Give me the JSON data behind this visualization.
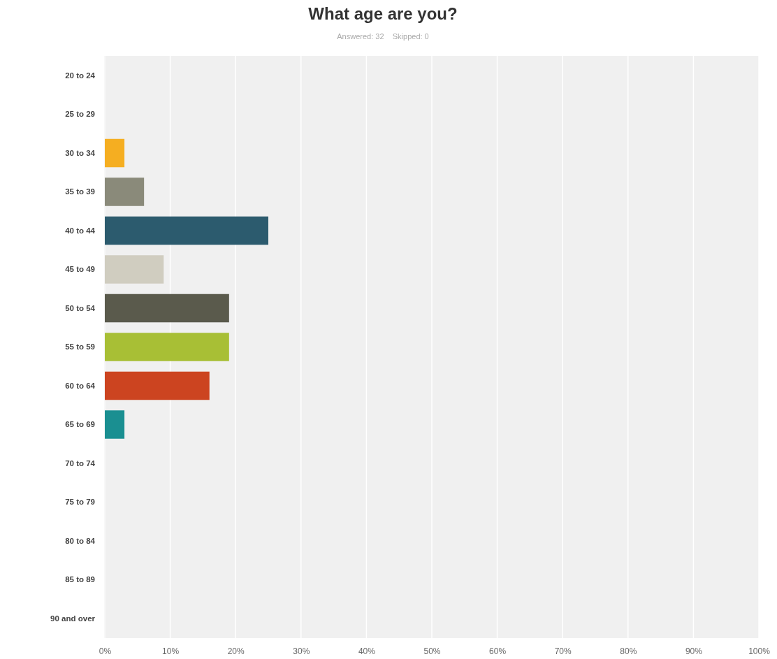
{
  "chart_data": {
    "type": "bar",
    "orientation": "horizontal",
    "title": "What age are you?",
    "subtitle": "Answered: 32    Skipped: 0",
    "categories": [
      "20 to 24",
      "25 to 29",
      "30 to 34",
      "35 to 39",
      "40 to 44",
      "45 to 49",
      "50 to 54",
      "55 to 59",
      "60 to 64",
      "65 to 69",
      "70 to 74",
      "75 to 79",
      "80 to 84",
      "85 to 89",
      "90 and over"
    ],
    "values": [
      0,
      0,
      3,
      6,
      25,
      9,
      19,
      19,
      16,
      3,
      0,
      0,
      0,
      0,
      0
    ],
    "colors": [
      null,
      null,
      "#f5ae21",
      "#8a8a7a",
      "#2c5b6e",
      "#d0cdc0",
      "#5a5a4c",
      "#a8bf35",
      "#cc4420",
      "#1a8f91",
      null,
      null,
      null,
      null,
      null
    ],
    "xlim": [
      0,
      100
    ],
    "xticks": [
      {
        "value": 0,
        "label": "0%"
      },
      {
        "value": 10,
        "label": "10%"
      },
      {
        "value": 20,
        "label": "20%"
      },
      {
        "value": 30,
        "label": "30%"
      },
      {
        "value": 40,
        "label": "40%"
      },
      {
        "value": 50,
        "label": "50%"
      },
      {
        "value": 60,
        "label": "60%"
      },
      {
        "value": 70,
        "label": "70%"
      },
      {
        "value": 80,
        "label": "80%"
      },
      {
        "value": 90,
        "label": "90%"
      },
      {
        "value": 100,
        "label": "100%"
      }
    ],
    "grid": "x"
  }
}
